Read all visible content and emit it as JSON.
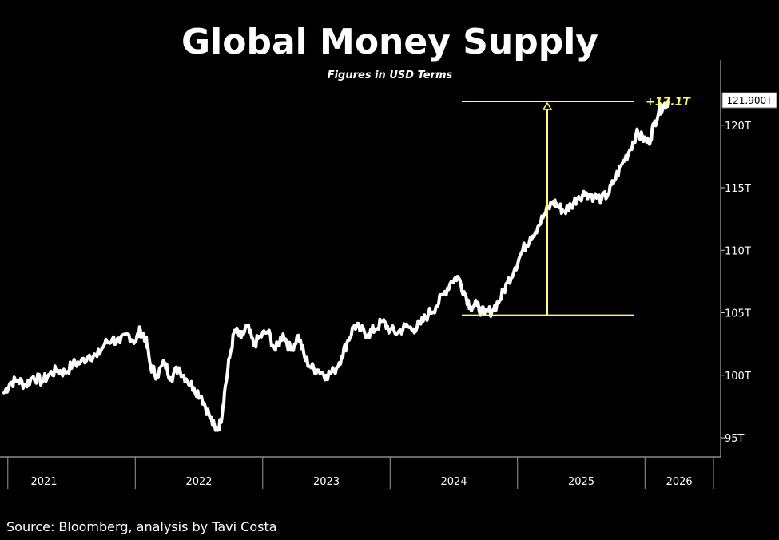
{
  "chart_data": {
    "type": "line",
    "title": "Global Money Supply",
    "subtitle": "Figures in USD Terms",
    "source": "Source: Bloomberg, analysis by Tavi Costa",
    "y_axis": {
      "position": "right",
      "min": 92.5,
      "max": 125,
      "ticks": [
        {
          "value": 95,
          "label": "95T"
        },
        {
          "value": 100,
          "label": "100T"
        },
        {
          "value": 105,
          "label": "105T"
        },
        {
          "value": 110,
          "label": "110T"
        },
        {
          "value": 115,
          "label": "115T"
        },
        {
          "value": 120,
          "label": "120T"
        }
      ]
    },
    "x_axis": {
      "min": 2020.97,
      "max": 2026.55,
      "year_labels": [
        "2021",
        "2022",
        "2023",
        "2024",
        "2025",
        "2026"
      ],
      "year_boundaries": [
        2021.0,
        2022.0,
        2023.0,
        2024.0,
        2025.0,
        2026.0
      ]
    },
    "last_value_label": "121.900T",
    "grid": false,
    "colors": {
      "line": "#ffffff",
      "annotation": "#ffff66",
      "background": "#000000"
    },
    "series": [
      {
        "points": [
          [
            2020.97,
            98.6
          ],
          [
            2021.02,
            99.4
          ],
          [
            2021.08,
            99.6
          ],
          [
            2021.14,
            99.2
          ],
          [
            2021.2,
            99.9
          ],
          [
            2021.27,
            99.5
          ],
          [
            2021.33,
            100.1
          ],
          [
            2021.39,
            100.4
          ],
          [
            2021.45,
            100.2
          ],
          [
            2021.51,
            100.9
          ],
          [
            2021.57,
            101.0
          ],
          [
            2021.64,
            101.6
          ],
          [
            2021.7,
            101.5
          ],
          [
            2021.76,
            102.5
          ],
          [
            2021.82,
            102.9
          ],
          [
            2021.88,
            102.6
          ],
          [
            2021.94,
            103.3
          ],
          [
            2022.0,
            102.7
          ],
          [
            2022.04,
            103.6
          ],
          [
            2022.08,
            103.0
          ],
          [
            2022.12,
            100.7
          ],
          [
            2022.17,
            100.0
          ],
          [
            2022.23,
            101.0
          ],
          [
            2022.28,
            99.8
          ],
          [
            2022.34,
            100.6
          ],
          [
            2022.4,
            99.7
          ],
          [
            2022.46,
            99.0
          ],
          [
            2022.52,
            98.3
          ],
          [
            2022.58,
            96.8
          ],
          [
            2022.63,
            95.6
          ],
          [
            2022.67,
            96.2
          ],
          [
            2022.7,
            98.6
          ],
          [
            2022.74,
            101.4
          ],
          [
            2022.78,
            103.6
          ],
          [
            2022.83,
            103.0
          ],
          [
            2022.88,
            103.9
          ],
          [
            2022.93,
            102.4
          ],
          [
            2022.98,
            103.1
          ],
          [
            2023.04,
            103.5
          ],
          [
            2023.1,
            102.0
          ],
          [
            2023.16,
            103.3
          ],
          [
            2023.22,
            102.0
          ],
          [
            2023.28,
            103.2
          ],
          [
            2023.33,
            101.4
          ],
          [
            2023.38,
            100.6
          ],
          [
            2023.44,
            100.4
          ],
          [
            2023.5,
            100.0
          ],
          [
            2023.56,
            100.3
          ],
          [
            2023.62,
            101.5
          ],
          [
            2023.67,
            102.8
          ],
          [
            2023.72,
            104.0
          ],
          [
            2023.77,
            103.6
          ],
          [
            2023.83,
            103.3
          ],
          [
            2023.88,
            103.7
          ],
          [
            2023.94,
            104.3
          ],
          [
            2024.0,
            103.6
          ],
          [
            2024.06,
            103.4
          ],
          [
            2024.12,
            103.9
          ],
          [
            2024.18,
            103.7
          ],
          [
            2024.24,
            104.1
          ],
          [
            2024.3,
            104.9
          ],
          [
            2024.36,
            105.5
          ],
          [
            2024.42,
            106.5
          ],
          [
            2024.48,
            107.5
          ],
          [
            2024.53,
            107.9
          ],
          [
            2024.58,
            106.7
          ],
          [
            2024.63,
            105.5
          ],
          [
            2024.68,
            105.6
          ],
          [
            2024.74,
            104.9
          ],
          [
            2024.8,
            105.2
          ],
          [
            2024.86,
            106.0
          ],
          [
            2024.92,
            107.4
          ],
          [
            2024.98,
            108.6
          ],
          [
            2025.04,
            110.0
          ],
          [
            2025.1,
            111.0
          ],
          [
            2025.16,
            111.9
          ],
          [
            2025.22,
            113.0
          ],
          [
            2025.28,
            113.9
          ],
          [
            2025.32,
            113.5
          ],
          [
            2025.37,
            113.1
          ],
          [
            2025.42,
            113.6
          ],
          [
            2025.48,
            114.3
          ],
          [
            2025.54,
            114.6
          ],
          [
            2025.6,
            114.3
          ],
          [
            2025.66,
            114.1
          ],
          [
            2025.71,
            114.5
          ],
          [
            2025.76,
            115.6
          ],
          [
            2025.82,
            116.9
          ],
          [
            2025.88,
            118.0
          ],
          [
            2025.93,
            119.3
          ],
          [
            2025.98,
            119.0
          ],
          [
            2026.03,
            118.6
          ],
          [
            2026.07,
            120.0
          ],
          [
            2026.11,
            121.2
          ],
          [
            2026.15,
            121.6
          ],
          [
            2026.18,
            121.9
          ]
        ]
      }
    ],
    "annotation": {
      "label": "+17.1T",
      "low_value": 104.8,
      "high_value": 121.9,
      "line_from_x": 2025.0,
      "line_to_x": 2026.35,
      "low_line_from_x": 2024.98,
      "low_line_to_x": 2026.35,
      "arrow_x": 2025.68
    }
  }
}
